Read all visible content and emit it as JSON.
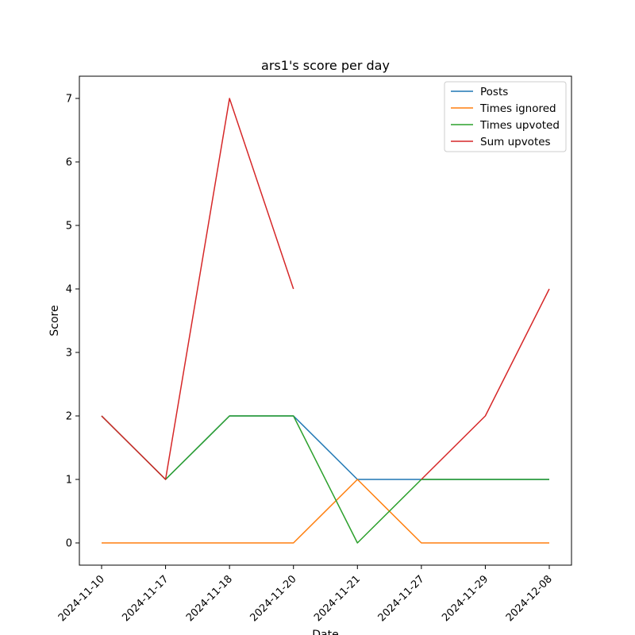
{
  "chart_data": {
    "type": "line",
    "title": "ars1's score per day",
    "xlabel": "Date",
    "ylabel": "Score",
    "categories": [
      "2024-11-10",
      "2024-11-17",
      "2024-11-18",
      "2024-11-20",
      "2024-11-21",
      "2024-11-27",
      "2024-11-29",
      "2024-12-08"
    ],
    "y_ticks": [
      0,
      1,
      2,
      3,
      4,
      5,
      6,
      7
    ],
    "ylim": [
      -0.35,
      7.35
    ],
    "grid": false,
    "legend_position": "top-right",
    "series": [
      {
        "name": "Posts",
        "color": "#1f77b4",
        "values": [
          2,
          1,
          2,
          2,
          1,
          1,
          1,
          1
        ]
      },
      {
        "name": "Times ignored",
        "color": "#ff7f0e",
        "values": [
          0,
          0,
          0,
          0,
          1,
          0,
          0,
          0
        ]
      },
      {
        "name": "Times upvoted",
        "color": "#2ca02c",
        "values": [
          2,
          1,
          2,
          2,
          0,
          1,
          1,
          1
        ]
      },
      {
        "name": "Sum upvotes",
        "color": "#d62728",
        "values": [
          2,
          1,
          7,
          4,
          null,
          1,
          2,
          4
        ]
      }
    ]
  }
}
